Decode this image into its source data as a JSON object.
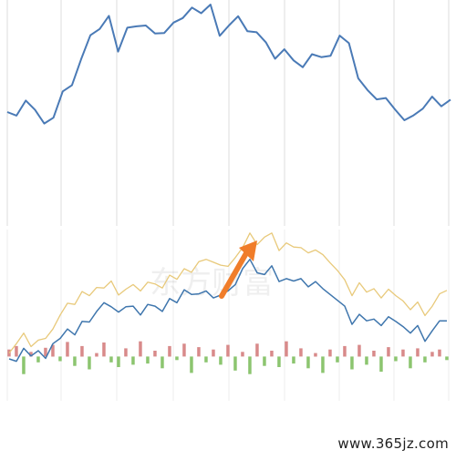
{
  "source_label": "www.365jz.com",
  "bg_watermark": "东方财富",
  "colors": {
    "price_line": "#4a7ab6",
    "yellow_line": "#e8c97a",
    "blue_line": "#3f76ad",
    "bar_up": "#d88a8a",
    "bar_down": "#8cc56f",
    "arrow": "#f07d2a",
    "grid": "#dcdcdc"
  },
  "chart_data": [
    {
      "type": "line",
      "x": [
        0,
        1,
        2,
        3,
        4,
        5,
        6,
        7,
        8,
        9,
        10,
        11,
        12,
        13,
        14,
        15,
        16,
        17,
        18,
        19,
        20,
        21,
        22,
        23,
        24,
        25,
        26,
        27,
        28,
        29,
        30,
        31,
        32,
        33,
        34,
        35,
        36,
        37,
        38,
        39,
        40,
        41,
        42,
        43,
        44,
        45,
        46,
        47,
        48
      ],
      "series": [
        {
          "values": [
            90.7,
            87.9,
            99.9,
            92.5,
            81.6,
            86.2,
            107.2,
            112.1,
            132.9,
            151.9,
            156.9,
            167.4,
            138.9,
            157.9,
            159.0,
            159.7,
            153.3,
            153.7,
            162.0,
            165.6,
            174.0,
            169.5,
            176.4,
            151.5,
            159.7,
            167.1,
            155.1,
            154.3,
            146.3,
            133.2,
            140.7,
            131.9,
            126.4,
            136.8,
            134.5,
            135.5,
            151.6,
            145.6,
            117.6,
            108.3,
            100.8,
            101.9,
            92.6,
            84.2,
            88.1,
            93.4,
            103.0,
            95.3,
            100.6
          ]
        }
      ],
      "ylim": [
        0,
        180
      ],
      "grid": "vertical"
    },
    {
      "type": "line",
      "x": [
        0,
        1,
        2,
        3,
        4,
        5,
        6,
        7,
        8,
        9,
        10,
        11,
        12,
        13,
        14,
        15,
        16,
        17,
        18,
        19,
        20,
        21,
        22,
        23,
        24,
        25,
        26,
        27,
        28,
        29,
        30,
        31,
        32,
        33,
        34,
        35,
        36,
        37,
        38,
        39,
        40,
        41,
        42,
        43,
        44,
        45,
        46,
        47,
        48,
        49,
        50,
        51,
        52,
        53,
        54,
        55,
        56,
        57,
        58,
        59,
        60
      ],
      "series": [
        {
          "values": [
            6,
            22,
            40,
            17,
            28,
            31,
            47,
            71,
            91,
            89,
            111,
            104,
            118,
            117,
            129,
            105,
            115,
            123,
            112,
            127,
            124,
            117,
            139,
            132,
            150,
            144,
            162,
            166,
            161,
            156,
            154,
            169,
            186,
            211,
            191,
            204,
            211,
            181,
            194,
            187,
            186,
            177,
            182,
            174,
            160,
            147,
            131,
            104,
            126,
            110,
            116,
            100,
            115,
            104,
            95,
            80,
            93,
            70,
            86,
            107,
            113
          ]
        },
        {
          "values": [
            -4,
            -8,
            14,
            1,
            10,
            -3,
            22,
            31,
            47,
            37,
            60,
            59,
            77,
            92,
            85,
            76,
            85,
            86,
            71,
            89,
            86,
            77,
            99,
            92,
            114,
            106,
            107,
            112,
            100,
            105,
            112,
            123,
            150,
            166,
            143,
            140,
            155,
            128,
            133,
            129,
            133,
            119,
            128,
            116,
            106,
            96,
            86,
            55,
            72,
            61,
            64,
            53,
            68,
            60,
            51,
            40,
            53,
            26,
            44,
            61,
            61
          ]
        },
        {
          "type": "bar",
          "values": [
            12,
            18,
            -30,
            8,
            -10,
            15,
            20,
            -8,
            25,
            -16,
            18,
            -22,
            6,
            24,
            -10,
            -18,
            14,
            -14,
            26,
            -12,
            10,
            -20,
            18,
            -6,
            22,
            -28,
            16,
            -10,
            12,
            -14,
            20,
            -24,
            8,
            -30,
            22,
            -16,
            10,
            -18,
            26,
            -12,
            14,
            -20,
            6,
            -28,
            12,
            -10,
            18,
            -22,
            20,
            -14,
            10,
            -26,
            16,
            -8,
            12,
            -20,
            14,
            -10,
            8,
            12,
            -6
          ]
        }
      ],
      "ylim": [
        -60,
        220
      ],
      "grid": "vertical",
      "annotations": [
        "arrow"
      ]
    }
  ]
}
